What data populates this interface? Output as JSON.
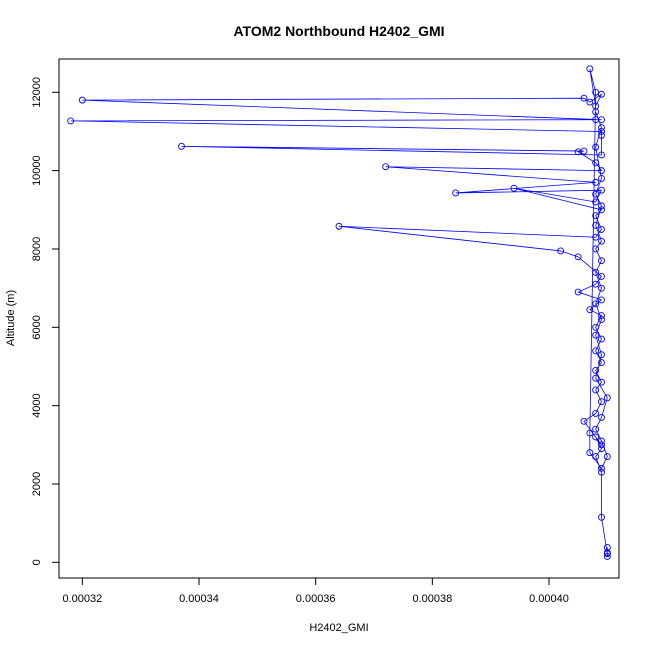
{
  "chart_data": {
    "type": "line",
    "title": "ATOM2 Northbound H2402_GMI",
    "xlabel": "H2402_GMI",
    "ylabel": "Altitude (m)",
    "xlim": [
      0.000316,
      0.000412
    ],
    "ylim": [
      -400,
      12850
    ],
    "x_ticks": [
      0.00032,
      0.00034,
      0.00036,
      0.00038,
      0.0004
    ],
    "x_tick_labels": [
      "0.00032",
      "0.00034",
      "0.00036",
      "0.00038",
      "0.00040"
    ],
    "y_ticks": [
      0,
      2000,
      4000,
      6000,
      8000,
      10000,
      12000
    ],
    "y_tick_labels": [
      "0",
      "2000",
      "4000",
      "6000",
      "8000",
      "10000",
      "12000"
    ],
    "grid": false,
    "series": [
      {
        "color": "#0000ff",
        "marker": "open-circle",
        "points": [
          [
            0.00041,
            150
          ],
          [
            0.00041,
            250
          ],
          [
            0.00041,
            380
          ],
          [
            0.00041,
            220
          ],
          [
            0.000409,
            1150
          ],
          [
            0.000409,
            2300
          ],
          [
            0.000408,
            2700
          ],
          [
            0.000409,
            2900
          ],
          [
            0.000408,
            3200
          ],
          [
            0.000409,
            3000
          ],
          [
            0.000406,
            3600
          ],
          [
            0.000408,
            3800
          ],
          [
            0.000409,
            4100
          ],
          [
            0.000408,
            4400
          ],
          [
            0.000409,
            4600
          ],
          [
            0.000408,
            4900
          ],
          [
            0.000409,
            5100
          ],
          [
            0.000408,
            5400
          ],
          [
            0.000409,
            5700
          ],
          [
            0.000408,
            6000
          ],
          [
            0.000409,
            6300
          ],
          [
            0.000407,
            6450
          ],
          [
            0.000409,
            6700
          ],
          [
            0.000405,
            6900
          ],
          [
            0.000408,
            7100
          ],
          [
            0.000409,
            7300
          ],
          [
            0.000405,
            7800
          ],
          [
            0.000402,
            7950
          ],
          [
            0.000364,
            8580
          ],
          [
            0.000408,
            8300
          ],
          [
            0.000409,
            8500
          ],
          [
            0.000408,
            8850
          ],
          [
            0.000409,
            9000
          ],
          [
            0.000394,
            9550
          ],
          [
            0.000408,
            9200
          ],
          [
            0.000409,
            9500
          ],
          [
            0.000384,
            9430
          ],
          [
            0.000408,
            9700
          ],
          [
            0.000372,
            10100
          ],
          [
            0.000409,
            10000
          ],
          [
            0.000408,
            10200
          ],
          [
            0.000405,
            10480
          ],
          [
            0.000406,
            10500
          ],
          [
            0.000337,
            10620
          ],
          [
            0.000409,
            10400
          ],
          [
            0.000409,
            10900
          ],
          [
            0.000409,
            11000
          ],
          [
            0.000318,
            11270
          ],
          [
            0.000408,
            11300
          ],
          [
            0.000409,
            11300
          ],
          [
            0.00032,
            11800
          ],
          [
            0.000406,
            11850
          ],
          [
            0.000407,
            11750
          ],
          [
            0.000409,
            11950
          ],
          [
            0.000408,
            11650
          ],
          [
            0.000407,
            12600
          ],
          [
            0.000408,
            12000
          ],
          [
            0.000407,
            3300
          ],
          [
            0.000407,
            2800
          ],
          [
            0.000409,
            2400
          ],
          [
            0.00041,
            2700
          ],
          [
            0.000409,
            3100
          ],
          [
            0.000408,
            3400
          ],
          [
            0.000409,
            3700
          ],
          [
            0.00041,
            4200
          ],
          [
            0.000408,
            4700
          ],
          [
            0.000409,
            5300
          ],
          [
            0.000408,
            5800
          ],
          [
            0.000409,
            6200
          ],
          [
            0.000408,
            6600
          ],
          [
            0.000409,
            7000
          ],
          [
            0.000408,
            7400
          ],
          [
            0.000409,
            7700
          ],
          [
            0.000408,
            8000
          ],
          [
            0.000409,
            8200
          ],
          [
            0.000408,
            8600
          ],
          [
            0.000409,
            9100
          ],
          [
            0.000408,
            9400
          ],
          [
            0.000409,
            9800
          ],
          [
            0.000408,
            10600
          ],
          [
            0.000409,
            11100
          ],
          [
            0.000408,
            11500
          ]
        ]
      }
    ]
  }
}
